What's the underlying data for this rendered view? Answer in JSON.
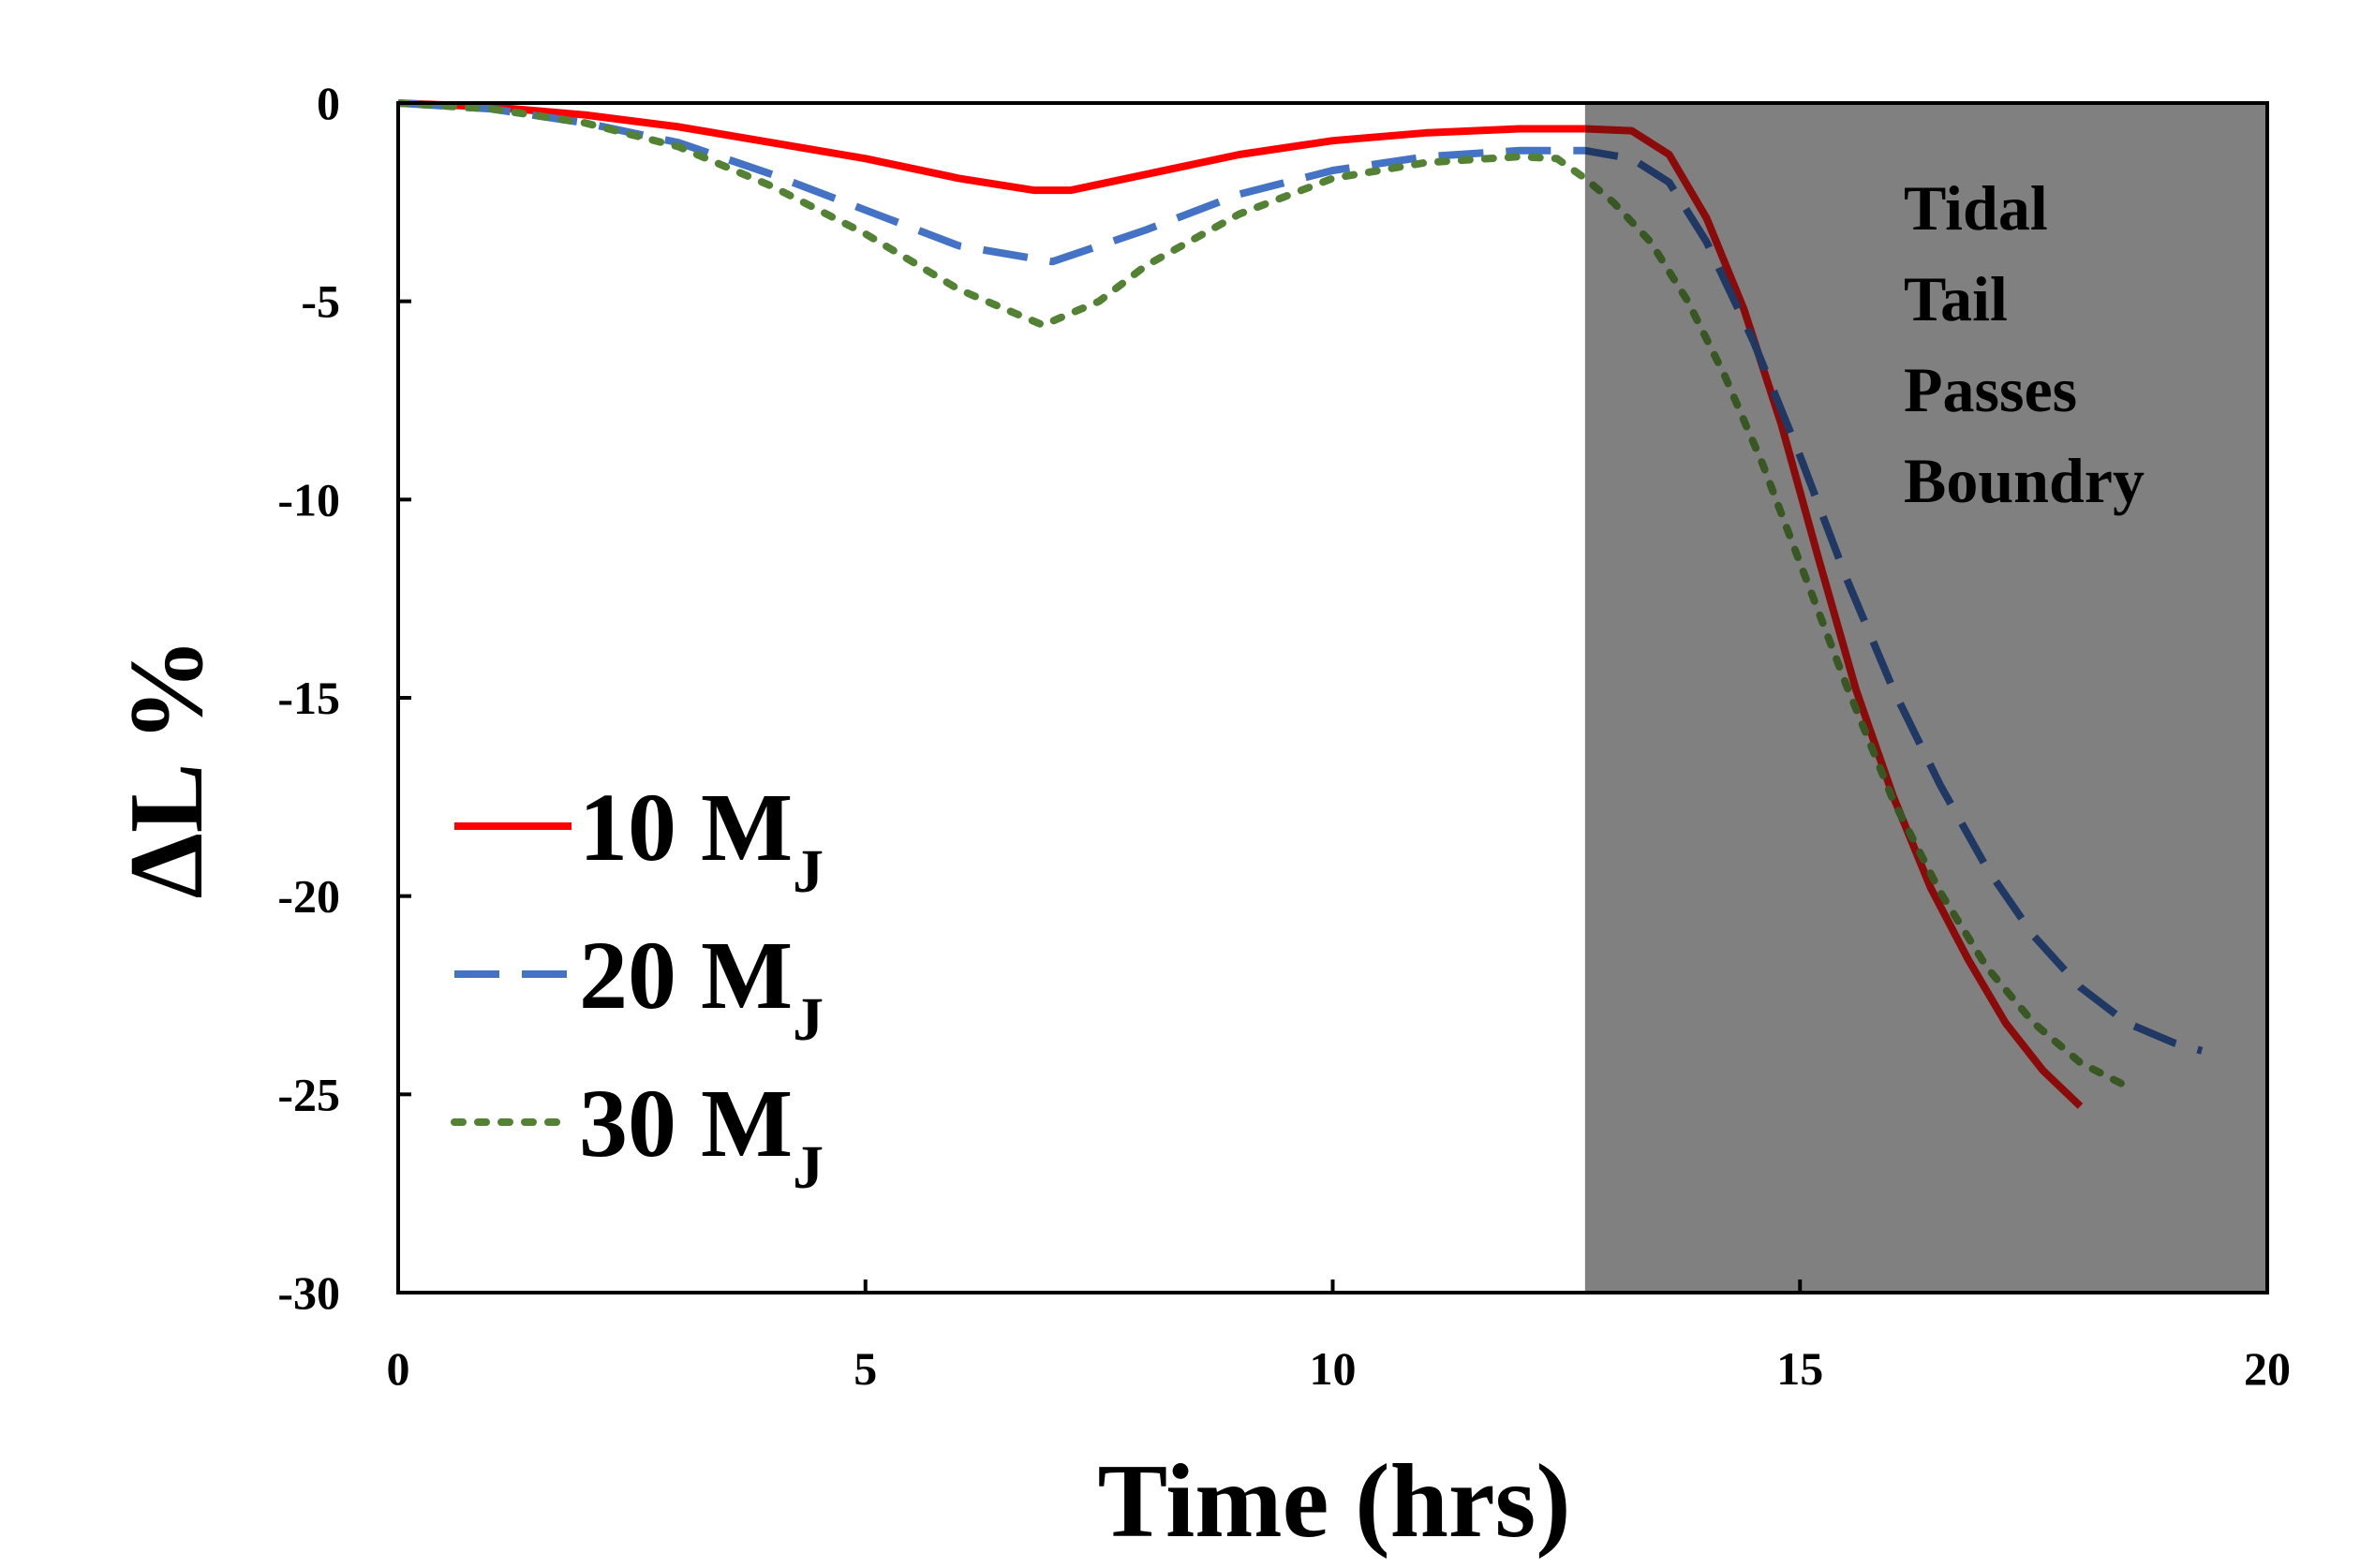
{
  "chart_data": {
    "type": "line",
    "title": "",
    "xlabel": "Time (hrs)",
    "ylabel": "ΔL %",
    "xlim": [
      0,
      20
    ],
    "ylim": [
      -30,
      0
    ],
    "xticks": [
      0,
      5,
      10,
      15,
      20
    ],
    "yticks": [
      0,
      -5,
      -10,
      -15,
      -20,
      -25,
      -30
    ],
    "grid": false,
    "legend_position": "left",
    "shaded_region": {
      "x_start": 12.7,
      "x_end": 20,
      "color": "#808080",
      "label_lines": [
        "Tidal",
        "Tail",
        "Passes",
        "Boundry"
      ]
    },
    "series": [
      {
        "name": "10 M",
        "subscript": "J",
        "color": "#ff0000",
        "shaded_color": "#8b0a0a",
        "style": "solid",
        "x": [
          0,
          1,
          2,
          3,
          4,
          5,
          6,
          6.8,
          7.2,
          8,
          9,
          10,
          11,
          12,
          12.7,
          13.2,
          13.6,
          14,
          14.4,
          14.8,
          15.2,
          15.6,
          16,
          16.4,
          16.8,
          17.2,
          17.6,
          18
        ],
        "y": [
          0,
          -0.1,
          -0.3,
          -0.6,
          -1.0,
          -1.4,
          -1.9,
          -2.2,
          -2.2,
          -1.8,
          -1.3,
          -0.95,
          -0.75,
          -0.65,
          -0.65,
          -0.7,
          -1.3,
          -2.9,
          -5.2,
          -8.1,
          -11.5,
          -14.8,
          -17.5,
          -19.8,
          -21.6,
          -23.2,
          -24.4,
          -25.3
        ]
      },
      {
        "name": "20 M",
        "subscript": "J",
        "color": "#4472c4",
        "shaded_color": "#1f3864",
        "style": "dashed",
        "x": [
          0,
          1,
          2,
          3,
          4,
          5,
          6,
          7,
          8,
          9,
          10,
          11,
          12,
          12.7,
          13.2,
          13.6,
          14,
          14.5,
          15,
          15.5,
          16,
          16.5,
          17,
          17.5,
          18,
          18.5,
          19,
          19.3
        ],
        "y": [
          0,
          -0.15,
          -0.5,
          -1.0,
          -1.8,
          -2.7,
          -3.6,
          -4.0,
          -3.2,
          -2.3,
          -1.7,
          -1.35,
          -1.2,
          -1.2,
          -1.4,
          -2.0,
          -3.5,
          -6.0,
          -8.9,
          -12.0,
          -14.8,
          -17.2,
          -19.3,
          -21.0,
          -22.3,
          -23.2,
          -23.7,
          -23.9
        ]
      },
      {
        "name": "30 M",
        "subscript": "J",
        "color": "#548235",
        "shaded_color": "#385723",
        "style": "dotted",
        "x": [
          0,
          1,
          2,
          3,
          4,
          5,
          6,
          6.9,
          7.5,
          8,
          9,
          10,
          11,
          12,
          12.4,
          12.7,
          13,
          13.4,
          13.8,
          14.2,
          14.6,
          15,
          15.5,
          16,
          16.5,
          17,
          17.5,
          18,
          18.5
        ],
        "y": [
          0,
          -0.15,
          -0.5,
          -1.1,
          -2.1,
          -3.3,
          -4.7,
          -5.6,
          -5.0,
          -4.1,
          -2.8,
          -1.9,
          -1.5,
          -1.35,
          -1.4,
          -1.9,
          -2.5,
          -3.5,
          -5.0,
          -6.9,
          -9.1,
          -11.6,
          -14.7,
          -17.6,
          -19.9,
          -21.8,
          -23.2,
          -24.2,
          -24.8
        ]
      }
    ]
  }
}
